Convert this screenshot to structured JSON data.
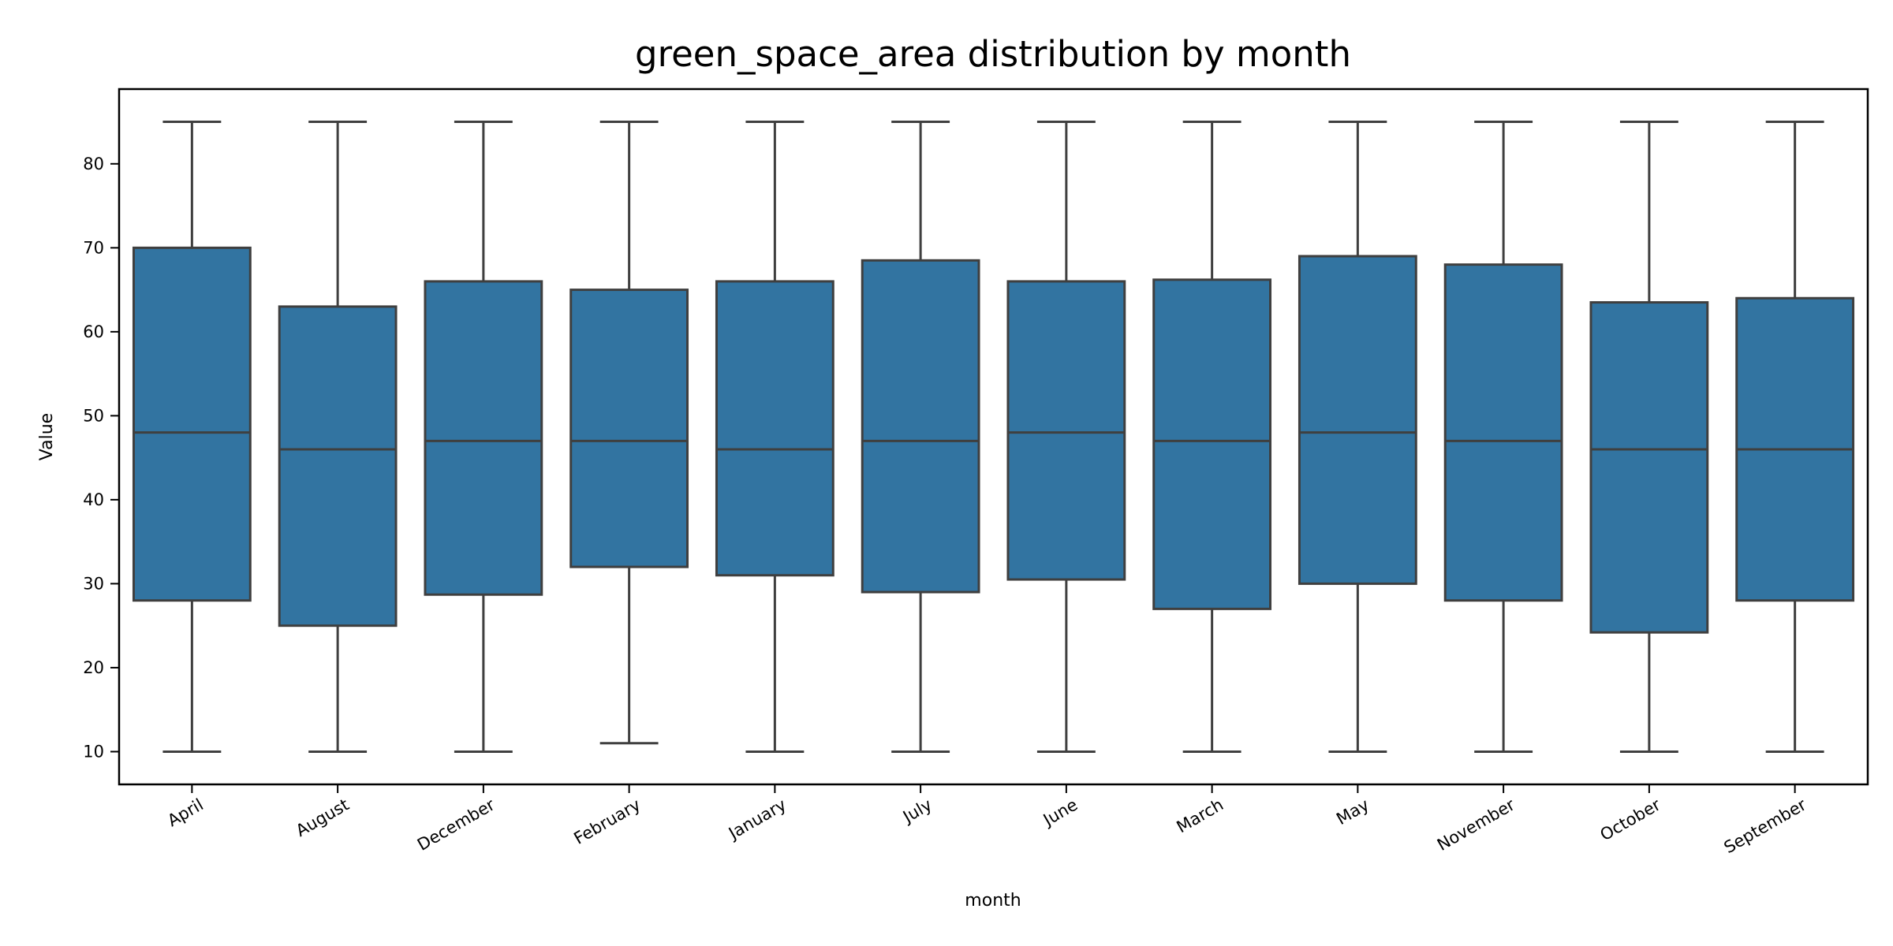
{
  "chart_data": {
    "type": "box",
    "title": "green_space_area distribution by month",
    "xlabel": "month",
    "ylabel": "Value",
    "ylim": [
      6.1,
      88.9
    ],
    "yticks": [
      10,
      20,
      30,
      40,
      50,
      60,
      70,
      80
    ],
    "grid": false,
    "color": "#3274a1",
    "edge_color": "#3f3f3f",
    "categories": [
      "April",
      "August",
      "December",
      "February",
      "January",
      "July",
      "June",
      "March",
      "May",
      "November",
      "October",
      "September"
    ],
    "boxes": [
      {
        "category": "April",
        "min": 10,
        "q1": 28.0,
        "median": 48,
        "q3": 70.0,
        "max": 85
      },
      {
        "category": "August",
        "min": 10,
        "q1": 25.0,
        "median": 46,
        "q3": 63.0,
        "max": 85
      },
      {
        "category": "December",
        "min": 10,
        "q1": 28.7,
        "median": 47,
        "q3": 66.0,
        "max": 85
      },
      {
        "category": "February",
        "min": 11,
        "q1": 32.0,
        "median": 47,
        "q3": 65.0,
        "max": 85
      },
      {
        "category": "January",
        "min": 10,
        "q1": 31.0,
        "median": 46,
        "q3": 66.0,
        "max": 85
      },
      {
        "category": "July",
        "min": 10,
        "q1": 29.0,
        "median": 47,
        "q3": 68.5,
        "max": 85
      },
      {
        "category": "June",
        "min": 10,
        "q1": 30.5,
        "median": 48,
        "q3": 66.0,
        "max": 85
      },
      {
        "category": "March",
        "min": 10,
        "q1": 27.0,
        "median": 47,
        "q3": 66.2,
        "max": 85
      },
      {
        "category": "May",
        "min": 10,
        "q1": 30.0,
        "median": 48,
        "q3": 69.0,
        "max": 85
      },
      {
        "category": "November",
        "min": 10,
        "q1": 28.0,
        "median": 47,
        "q3": 68.0,
        "max": 85
      },
      {
        "category": "October",
        "min": 10,
        "q1": 24.2,
        "median": 46,
        "q3": 63.5,
        "max": 85
      },
      {
        "category": "September",
        "min": 10,
        "q1": 28.0,
        "median": 46,
        "q3": 64.0,
        "max": 85
      }
    ]
  }
}
